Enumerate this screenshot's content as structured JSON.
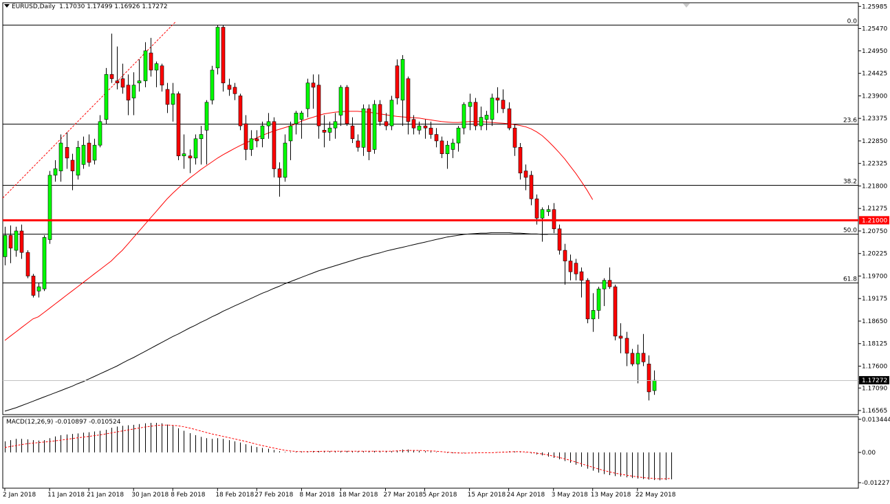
{
  "header": {
    "symbol": "EURUSD,Daily",
    "ohlc": "1.17030 1.17499 1.16926 1.17272"
  },
  "macd": {
    "label": "MACD(12,26,9) -0.010897 -0.010524",
    "axis_labels": [
      "0.013444",
      "0.00",
      "-0.01227"
    ]
  },
  "price_axis_labels": [
    "1.25985",
    "1.25470",
    "1.24950",
    "1.24425",
    "1.23900",
    "1.23375",
    "1.22850",
    "1.22325",
    "1.21800",
    "1.21275",
    "1.20750",
    "1.20225",
    "1.19700",
    "1.19175",
    "1.18650",
    "1.18125",
    "1.17600",
    "1.17090",
    "1.16565"
  ],
  "badges": {
    "level": "1.21000",
    "current": "1.17272"
  },
  "fib_levels": [
    {
      "label": "0.0",
      "price": 1.2555
    },
    {
      "label": "23.6",
      "price": 1.2325
    },
    {
      "label": "38.2",
      "price": 1.2183
    },
    {
      "label": "50.0",
      "price": 1.2068
    },
    {
      "label": "61.8",
      "price": 1.1954
    }
  ],
  "x_axis_labels": [
    "2 Jan 2018",
    "11 Jan 2018",
    "21 Jan 2018",
    "30 Jan 2018",
    "8 Feb 2018",
    "18 Feb 2018",
    "27 Feb 2018",
    "8 Mar 2018",
    "18 Mar 2018",
    "27 Mar 2018",
    "5 Apr 2018",
    "15 Apr 2018",
    "24 Apr 2018",
    "3 May 2018",
    "13 May 2018",
    "22 May 2018"
  ],
  "colors": {
    "bull": "#00ff00",
    "bear": "#ff0000",
    "level_line": "#ff0000",
    "ma_red": "#ff0000",
    "ma_black": "#000000",
    "axis": "#000000",
    "current_line": "#c0c0c0"
  },
  "chart_data": {
    "type": "candlestick",
    "symbol": "EURUSD",
    "timeframe": "Daily",
    "ylim": [
      1.1647,
      1.2607
    ],
    "horizontal_level": 1.21,
    "current_price": 1.17272,
    "candles": [
      {
        "o": 1.2015,
        "h": 1.2085,
        "l": 1.1995,
        "c": 1.2065
      },
      {
        "o": 1.2065,
        "h": 1.2088,
        "l": 1.2,
        "c": 1.2035
      },
      {
        "o": 1.203,
        "h": 1.2085,
        "l": 1.2015,
        "c": 1.2075
      },
      {
        "o": 1.2075,
        "h": 1.209,
        "l": 1.201,
        "c": 1.2025
      },
      {
        "o": 1.2025,
        "h": 1.203,
        "l": 1.1965,
        "c": 1.197
      },
      {
        "o": 1.197,
        "h": 1.1975,
        "l": 1.192,
        "c": 1.1925
      },
      {
        "o": 1.1935,
        "h": 1.1955,
        "l": 1.192,
        "c": 1.1945
      },
      {
        "o": 1.194,
        "h": 1.2065,
        "l": 1.1935,
        "c": 1.206
      },
      {
        "o": 1.2055,
        "h": 1.2215,
        "l": 1.2045,
        "c": 1.2205
      },
      {
        "o": 1.2205,
        "h": 1.224,
        "l": 1.219,
        "c": 1.222
      },
      {
        "o": 1.2215,
        "h": 1.23,
        "l": 1.219,
        "c": 1.228
      },
      {
        "o": 1.227,
        "h": 1.2305,
        "l": 1.222,
        "c": 1.2245
      },
      {
        "o": 1.224,
        "h": 1.2255,
        "l": 1.217,
        "c": 1.2215
      },
      {
        "o": 1.2205,
        "h": 1.2285,
        "l": 1.2195,
        "c": 1.227
      },
      {
        "o": 1.223,
        "h": 1.2295,
        "l": 1.222,
        "c": 1.2275
      },
      {
        "o": 1.228,
        "h": 1.23,
        "l": 1.2225,
        "c": 1.2235
      },
      {
        "o": 1.224,
        "h": 1.229,
        "l": 1.223,
        "c": 1.2275
      },
      {
        "o": 1.2275,
        "h": 1.2345,
        "l": 1.227,
        "c": 1.233
      },
      {
        "o": 1.2335,
        "h": 1.2455,
        "l": 1.2325,
        "c": 1.244
      },
      {
        "o": 1.244,
        "h": 1.2535,
        "l": 1.242,
        "c": 1.243
      },
      {
        "o": 1.2425,
        "h": 1.2505,
        "l": 1.2405,
        "c": 1.242
      },
      {
        "o": 1.243,
        "h": 1.2465,
        "l": 1.2395,
        "c": 1.241
      },
      {
        "o": 1.2415,
        "h": 1.244,
        "l": 1.2345,
        "c": 1.238
      },
      {
        "o": 1.2385,
        "h": 1.2445,
        "l": 1.2345,
        "c": 1.2415
      },
      {
        "o": 1.242,
        "h": 1.2475,
        "l": 1.24,
        "c": 1.2425
      },
      {
        "o": 1.2425,
        "h": 1.2515,
        "l": 1.241,
        "c": 1.2495
      },
      {
        "o": 1.249,
        "h": 1.2525,
        "l": 1.2435,
        "c": 1.245
      },
      {
        "o": 1.245,
        "h": 1.247,
        "l": 1.241,
        "c": 1.2465
      },
      {
        "o": 1.246,
        "h": 1.2465,
        "l": 1.24,
        "c": 1.2415
      },
      {
        "o": 1.2405,
        "h": 1.242,
        "l": 1.235,
        "c": 1.237
      },
      {
        "o": 1.237,
        "h": 1.242,
        "l": 1.233,
        "c": 1.2395
      },
      {
        "o": 1.2395,
        "h": 1.24,
        "l": 1.224,
        "c": 1.225
      },
      {
        "o": 1.225,
        "h": 1.23,
        "l": 1.222,
        "c": 1.2255
      },
      {
        "o": 1.225,
        "h": 1.2265,
        "l": 1.221,
        "c": 1.2245
      },
      {
        "o": 1.2245,
        "h": 1.23,
        "l": 1.223,
        "c": 1.229
      },
      {
        "o": 1.229,
        "h": 1.232,
        "l": 1.223,
        "c": 1.23
      },
      {
        "o": 1.231,
        "h": 1.238,
        "l": 1.223,
        "c": 1.2375
      },
      {
        "o": 1.238,
        "h": 1.246,
        "l": 1.237,
        "c": 1.245
      },
      {
        "o": 1.2455,
        "h": 1.2555,
        "l": 1.244,
        "c": 1.255
      },
      {
        "o": 1.255,
        "h": 1.2555,
        "l": 1.24,
        "c": 1.242
      },
      {
        "o": 1.2415,
        "h": 1.243,
        "l": 1.239,
        "c": 1.2405
      },
      {
        "o": 1.241,
        "h": 1.242,
        "l": 1.238,
        "c": 1.2395
      },
      {
        "o": 1.239,
        "h": 1.2395,
        "l": 1.231,
        "c": 1.232
      },
      {
        "o": 1.2325,
        "h": 1.2345,
        "l": 1.224,
        "c": 1.2265
      },
      {
        "o": 1.2265,
        "h": 1.231,
        "l": 1.225,
        "c": 1.229
      },
      {
        "o": 1.229,
        "h": 1.231,
        "l": 1.227,
        "c": 1.2285
      },
      {
        "o": 1.229,
        "h": 1.233,
        "l": 1.227,
        "c": 1.232
      },
      {
        "o": 1.232,
        "h": 1.235,
        "l": 1.229,
        "c": 1.233
      },
      {
        "o": 1.233,
        "h": 1.234,
        "l": 1.22,
        "c": 1.222
      },
      {
        "o": 1.222,
        "h": 1.2235,
        "l": 1.2155,
        "c": 1.22
      },
      {
        "o": 1.22,
        "h": 1.23,
        "l": 1.219,
        "c": 1.228
      },
      {
        "o": 1.2285,
        "h": 1.233,
        "l": 1.224,
        "c": 1.232
      },
      {
        "o": 1.2325,
        "h": 1.2355,
        "l": 1.23,
        "c": 1.235
      },
      {
        "o": 1.2335,
        "h": 1.2355,
        "l": 1.229,
        "c": 1.235
      },
      {
        "o": 1.236,
        "h": 1.243,
        "l": 1.234,
        "c": 1.242
      },
      {
        "o": 1.242,
        "h": 1.244,
        "l": 1.236,
        "c": 1.241
      },
      {
        "o": 1.2415,
        "h": 1.244,
        "l": 1.229,
        "c": 1.232
      },
      {
        "o": 1.231,
        "h": 1.2345,
        "l": 1.227,
        "c": 1.2305
      },
      {
        "o": 1.2305,
        "h": 1.233,
        "l": 1.2285,
        "c": 1.2315
      },
      {
        "o": 1.2315,
        "h": 1.235,
        "l": 1.229,
        "c": 1.233
      },
      {
        "o": 1.2345,
        "h": 1.2415,
        "l": 1.232,
        "c": 1.241
      },
      {
        "o": 1.241,
        "h": 1.2415,
        "l": 1.232,
        "c": 1.2325
      },
      {
        "o": 1.232,
        "h": 1.234,
        "l": 1.228,
        "c": 1.229
      },
      {
        "o": 1.2285,
        "h": 1.23,
        "l": 1.226,
        "c": 1.227
      },
      {
        "o": 1.227,
        "h": 1.237,
        "l": 1.225,
        "c": 1.236
      },
      {
        "o": 1.236,
        "h": 1.237,
        "l": 1.224,
        "c": 1.226
      },
      {
        "o": 1.2265,
        "h": 1.238,
        "l": 1.2255,
        "c": 1.237
      },
      {
        "o": 1.237,
        "h": 1.238,
        "l": 1.232,
        "c": 1.233
      },
      {
        "o": 1.233,
        "h": 1.235,
        "l": 1.231,
        "c": 1.232
      },
      {
        "o": 1.232,
        "h": 1.239,
        "l": 1.231,
        "c": 1.238
      },
      {
        "o": 1.246,
        "h": 1.2475,
        "l": 1.237,
        "c": 1.2385
      },
      {
        "o": 1.238,
        "h": 1.2485,
        "l": 1.232,
        "c": 1.2475
      },
      {
        "o": 1.243,
        "h": 1.2435,
        "l": 1.23,
        "c": 1.233
      },
      {
        "o": 1.2335,
        "h": 1.2345,
        "l": 1.23,
        "c": 1.2315
      },
      {
        "o": 1.231,
        "h": 1.233,
        "l": 1.23,
        "c": 1.232
      },
      {
        "o": 1.232,
        "h": 1.2335,
        "l": 1.229,
        "c": 1.2315
      },
      {
        "o": 1.2315,
        "h": 1.233,
        "l": 1.229,
        "c": 1.23
      },
      {
        "o": 1.23,
        "h": 1.2315,
        "l": 1.227,
        "c": 1.2285
      },
      {
        "o": 1.2285,
        "h": 1.2295,
        "l": 1.2245,
        "c": 1.2255
      },
      {
        "o": 1.2255,
        "h": 1.2285,
        "l": 1.222,
        "c": 1.2275
      },
      {
        "o": 1.2265,
        "h": 1.229,
        "l": 1.2245,
        "c": 1.228
      },
      {
        "o": 1.228,
        "h": 1.232,
        "l": 1.226,
        "c": 1.2315
      },
      {
        "o": 1.2315,
        "h": 1.2375,
        "l": 1.23,
        "c": 1.237
      },
      {
        "o": 1.2365,
        "h": 1.2395,
        "l": 1.231,
        "c": 1.2375
      },
      {
        "o": 1.2375,
        "h": 1.2385,
        "l": 1.231,
        "c": 1.232
      },
      {
        "o": 1.232,
        "h": 1.2365,
        "l": 1.231,
        "c": 1.234
      },
      {
        "o": 1.2335,
        "h": 1.2355,
        "l": 1.231,
        "c": 1.2345
      },
      {
        "o": 1.2335,
        "h": 1.2395,
        "l": 1.232,
        "c": 1.2385
      },
      {
        "o": 1.2385,
        "h": 1.241,
        "l": 1.235,
        "c": 1.238
      },
      {
        "o": 1.238,
        "h": 1.2405,
        "l": 1.235,
        "c": 1.236
      },
      {
        "o": 1.236,
        "h": 1.2375,
        "l": 1.231,
        "c": 1.2315
      },
      {
        "o": 1.2315,
        "h": 1.2325,
        "l": 1.225,
        "c": 1.227
      },
      {
        "o": 1.227,
        "h": 1.228,
        "l": 1.2195,
        "c": 1.221
      },
      {
        "o": 1.2215,
        "h": 1.223,
        "l": 1.217,
        "c": 1.22
      },
      {
        "o": 1.2205,
        "h": 1.2215,
        "l": 1.2135,
        "c": 1.215
      },
      {
        "o": 1.215,
        "h": 1.216,
        "l": 1.209,
        "c": 1.2105
      },
      {
        "o": 1.2105,
        "h": 1.213,
        "l": 1.205,
        "c": 1.2125
      },
      {
        "o": 1.212,
        "h": 1.2135,
        "l": 1.211,
        "c": 1.2125
      },
      {
        "o": 1.2125,
        "h": 1.214,
        "l": 1.207,
        "c": 1.208
      },
      {
        "o": 1.208,
        "h": 1.209,
        "l": 1.202,
        "c": 1.203
      },
      {
        "o": 1.203,
        "h": 1.2045,
        "l": 1.195,
        "c": 1.2005
      },
      {
        "o": 1.2005,
        "h": 1.202,
        "l": 1.196,
        "c": 1.198
      },
      {
        "o": 1.2,
        "h": 1.201,
        "l": 1.196,
        "c": 1.1975
      },
      {
        "o": 1.198,
        "h": 1.199,
        "l": 1.192,
        "c": 1.196
      },
      {
        "o": 1.196,
        "h": 1.1965,
        "l": 1.186,
        "c": 1.187
      },
      {
        "o": 1.187,
        "h": 1.193,
        "l": 1.184,
        "c": 1.189
      },
      {
        "o": 1.189,
        "h": 1.1945,
        "l": 1.187,
        "c": 1.194
      },
      {
        "o": 1.194,
        "h": 1.1965,
        "l": 1.19,
        "c": 1.196
      },
      {
        "o": 1.196,
        "h": 1.199,
        "l": 1.194,
        "c": 1.1945
      },
      {
        "o": 1.1945,
        "h": 1.195,
        "l": 1.182,
        "c": 1.183
      },
      {
        "o": 1.183,
        "h": 1.186,
        "l": 1.179,
        "c": 1.1825
      },
      {
        "o": 1.1825,
        "h": 1.184,
        "l": 1.176,
        "c": 1.179
      },
      {
        "o": 1.179,
        "h": 1.18,
        "l": 1.176,
        "c": 1.1765
      },
      {
        "o": 1.1765,
        "h": 1.181,
        "l": 1.172,
        "c": 1.179
      },
      {
        "o": 1.179,
        "h": 1.1835,
        "l": 1.176,
        "c": 1.177
      },
      {
        "o": 1.1765,
        "h": 1.1785,
        "l": 1.168,
        "c": 1.17
      },
      {
        "o": 1.1703,
        "h": 1.175,
        "l": 1.1693,
        "c": 1.1727
      }
    ],
    "ma_red": {
      "start_index": 0,
      "values": [
        1.182,
        1.183,
        1.184,
        1.185,
        1.186,
        1.187,
        1.1875,
        1.1885,
        1.1895,
        1.1905,
        1.1915,
        1.1925,
        1.1935,
        1.1945,
        1.1955,
        1.1965,
        1.1975,
        1.1985,
        1.1995,
        1.2005,
        1.2018,
        1.203,
        1.2045,
        1.206,
        1.2075,
        1.209,
        1.2105,
        1.212,
        1.2135,
        1.215,
        1.2163,
        1.2175,
        1.2187,
        1.2198,
        1.2208,
        1.2218,
        1.2227,
        1.2236,
        1.2245,
        1.2253,
        1.226,
        1.2267,
        1.2274,
        1.228,
        1.2286,
        1.2292,
        1.2298,
        1.2303,
        1.2308,
        1.2312,
        1.2316,
        1.232,
        1.2325,
        1.2331,
        1.2336,
        1.234,
        1.2344,
        1.2348,
        1.235,
        1.2352,
        1.2353,
        1.2354,
        1.2354,
        1.2354,
        1.2353,
        1.2352,
        1.235,
        1.2348,
        1.2346,
        1.2344,
        1.2342,
        1.2341,
        1.234,
        1.2339,
        1.2338,
        1.2336,
        1.2334,
        1.2332,
        1.233,
        1.2329,
        1.2328,
        1.2328,
        1.2329,
        1.233,
        1.233,
        1.233,
        1.2329,
        1.2328,
        1.2327,
        1.2326,
        1.2325,
        1.2323,
        1.2321,
        1.2318,
        1.2313,
        1.2306,
        1.2297,
        1.2285,
        1.2272,
        1.2258,
        1.2243,
        1.2226,
        1.2209,
        1.219,
        1.217,
        1.2148
      ]
    },
    "ma_black": {
      "start_index": 0,
      "values": [
        1.1655,
        1.1659,
        1.1663,
        1.1668,
        1.1673,
        1.1678,
        1.1683,
        1.1688,
        1.1693,
        1.1698,
        1.1703,
        1.1708,
        1.1713,
        1.1719,
        1.1724,
        1.173,
        1.1736,
        1.1742,
        1.1748,
        1.1754,
        1.176,
        1.1767,
        1.1774,
        1.178,
        1.1787,
        1.1794,
        1.1801,
        1.1808,
        1.1815,
        1.1822,
        1.1829,
        1.1835,
        1.1842,
        1.1849,
        1.1855,
        1.1862,
        1.1868,
        1.1875,
        1.1881,
        1.1888,
        1.1894,
        1.19,
        1.1906,
        1.1912,
        1.1918,
        1.1924,
        1.193,
        1.1935,
        1.1941,
        1.1946,
        1.1952,
        1.1957,
        1.1962,
        1.1967,
        1.1972,
        1.1977,
        1.1982,
        1.1986,
        1.199,
        1.1994,
        1.1998,
        1.2002,
        1.2006,
        1.201,
        1.2014,
        1.2017,
        1.2021,
        1.2024,
        1.2028,
        1.2031,
        1.2034,
        1.2037,
        1.204,
        1.2043,
        1.2046,
        1.2049,
        1.2052,
        1.2055,
        1.2058,
        1.2061,
        1.2063,
        1.2065,
        1.2067,
        1.2068,
        1.2069,
        1.207,
        1.207,
        1.2071,
        1.2071,
        1.2071,
        1.2071,
        1.207,
        1.207,
        1.2069,
        1.2068,
        1.2068,
        1.2067,
        1.2067
      ]
    },
    "macd_ylim": [
      -0.0145,
      0.0145
    ],
    "macd_hist": [
      0.0045,
      0.005,
      0.0055,
      0.0055,
      0.0053,
      0.005,
      0.0048,
      0.005,
      0.0058,
      0.0065,
      0.007,
      0.0073,
      0.0075,
      0.0077,
      0.008,
      0.0082,
      0.0085,
      0.0088,
      0.0092,
      0.01,
      0.0105,
      0.0108,
      0.011,
      0.0112,
      0.0115,
      0.0118,
      0.012,
      0.012,
      0.0118,
      0.0113,
      0.0108,
      0.0098,
      0.0088,
      0.0078,
      0.007,
      0.0063,
      0.0058,
      0.0055,
      0.0058,
      0.0055,
      0.005,
      0.0045,
      0.004,
      0.0033,
      0.0027,
      0.0022,
      0.0018,
      0.0015,
      0.001,
      0.0005,
      0.0002,
      0.0002,
      0.0003,
      0.0004,
      0.0005,
      0.0006,
      0.0006,
      0.0006,
      0.0005,
      0.0005,
      0.0006,
      0.0006,
      0.0005,
      0.0005,
      0.0005,
      0.0006,
      0.0006,
      0.0006,
      0.0005,
      0.0005,
      0.0008,
      0.0012,
      0.0012,
      0.0009,
      0.0007,
      0.0005,
      0.0004,
      0.0002,
      0.0,
      -0.0002,
      -0.0003,
      -0.0003,
      -0.0002,
      0.0,
      0.0001,
      0.0,
      -0.0001,
      -0.0001,
      0.0001,
      0.0003,
      0.0005,
      0.0004,
      0.0002,
      -0.0001,
      -0.0004,
      -0.0008,
      -0.0012,
      -0.0017,
      -0.0022,
      -0.0028,
      -0.0035,
      -0.0042,
      -0.005,
      -0.0058,
      -0.0066,
      -0.0074,
      -0.0082,
      -0.0088,
      -0.0092,
      -0.0096,
      -0.0098,
      -0.0101,
      -0.0104,
      -0.0106,
      -0.0108,
      -0.011,
      -0.0112,
      -0.0113,
      -0.0112,
      -0.0109
    ],
    "macd_signal": [
      0.002,
      0.0024,
      0.0028,
      0.0032,
      0.0035,
      0.0038,
      0.004,
      0.0042,
      0.0044,
      0.0047,
      0.005,
      0.0053,
      0.0056,
      0.0059,
      0.0062,
      0.0065,
      0.0068,
      0.0071,
      0.0075,
      0.0079,
      0.0083,
      0.0087,
      0.0091,
      0.0095,
      0.0099,
      0.0103,
      0.0106,
      0.0109,
      0.0111,
      0.0111,
      0.011,
      0.0108,
      0.0104,
      0.0099,
      0.0093,
      0.0087,
      0.0081,
      0.0075,
      0.007,
      0.0065,
      0.006,
      0.0055,
      0.005,
      0.0045,
      0.0039,
      0.0033,
      0.0028,
      0.0023,
      0.0018,
      0.0013,
      0.0009,
      0.0006,
      0.0004,
      0.0003,
      0.0003,
      0.0004,
      0.0004,
      0.0005,
      0.0005,
      0.0005,
      0.0005,
      0.0005,
      0.0005,
      0.0005,
      0.0005,
      0.0005,
      0.0005,
      0.0005,
      0.0005,
      0.0005,
      0.0006,
      0.0007,
      0.0008,
      0.0008,
      0.0008,
      0.0007,
      0.0006,
      0.0005,
      0.0003,
      0.0001,
      -0.0001,
      -0.0002,
      -0.0003,
      -0.0002,
      -0.0002,
      -0.0001,
      -0.0001,
      -0.0001,
      0.0,
      0.0001,
      0.0002,
      0.0003,
      0.0003,
      0.0002,
      0.0,
      -0.0003,
      -0.0006,
      -0.001,
      -0.0015,
      -0.002,
      -0.0026,
      -0.0032,
      -0.0039,
      -0.0046,
      -0.0053,
      -0.006,
      -0.0067,
      -0.0073,
      -0.0079,
      -0.0084,
      -0.0088,
      -0.0092,
      -0.0096,
      -0.0099,
      -0.0102,
      -0.0104,
      -0.0106,
      -0.0107,
      -0.0107,
      -0.0105
    ]
  }
}
